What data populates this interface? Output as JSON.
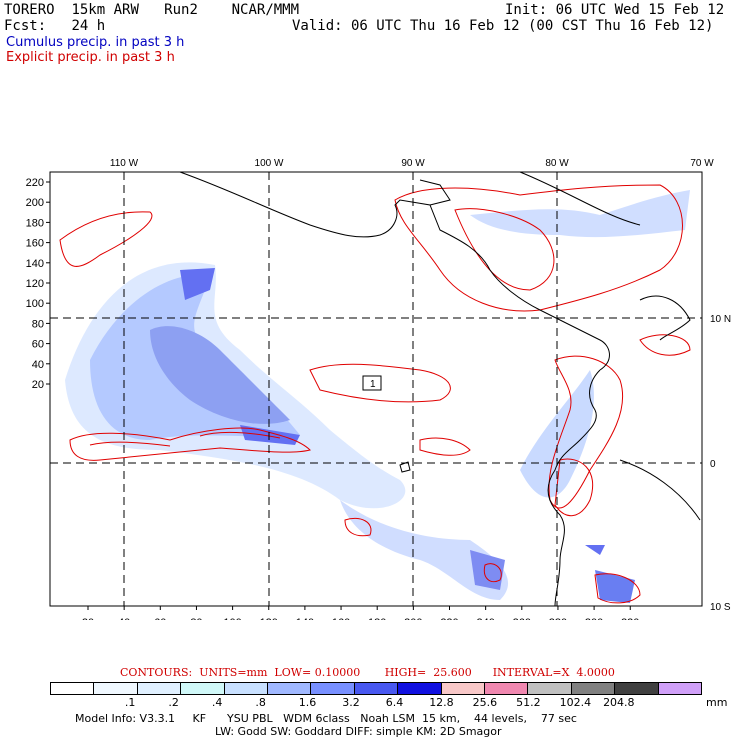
{
  "header": {
    "model": "TORERO",
    "resolution": "15km ARW",
    "run": "Run2",
    "org": "NCAR/MMM",
    "init": "Init: 06 UTC Wed 15 Feb 12",
    "fcst_label": "Fcst:",
    "fcst_hours": "24 h",
    "valid": "Valid: 06 UTC Thu 16 Feb 12 (00 CST Thu 16 Feb 12)",
    "cumulus_label": "Cumulus precip. in past 3 h",
    "explicit_label": "Explicit precip. in past 3 h"
  },
  "map": {
    "lon_labels": [
      "110 W",
      "100 W",
      "90 W",
      "80 W",
      "70 W"
    ],
    "lat_labels": [
      "10 N",
      "0",
      "10 S"
    ],
    "x_ticks": [
      "20",
      "40",
      "60",
      "80",
      "100",
      "120",
      "140",
      "160",
      "180",
      "200",
      "220",
      "240",
      "260",
      "280",
      "300",
      "320"
    ],
    "y_ticks": [
      "220",
      "200",
      "180",
      "160",
      "140",
      "120",
      "100",
      "80",
      "60",
      "40",
      "20"
    ],
    "center_label": "1"
  },
  "contours_line": "CONTOURS:  UNITS=mm  LOW= 0.10000       HIGH=  25.600      INTERVAL=X  4.0000",
  "colorbar": {
    "colors": [
      "#ffffff",
      "#f0f8ff",
      "#e0f0ff",
      "#d0f8f8",
      "#c8e0ff",
      "#a0b8ff",
      "#7890ff",
      "#4858f0",
      "#1010e0",
      "#f8c8c8",
      "#f088b0",
      "#c0c0c0",
      "#808080",
      "#404040",
      "#d0a0f8"
    ],
    "labels": [
      ".1",
      ".2",
      ".4",
      ".8",
      "1.6",
      "3.2",
      "6.4",
      "12.8",
      "25.6",
      "51.2",
      "102.4",
      "204.8"
    ],
    "units": "mm"
  },
  "model_info": {
    "line1": "Model Info: V3.3.1     KF      YSU PBL   WDM 6class   Noah LSM  15 km,    44 levels,    77 sec",
    "line2": "LW: Godd SW: Goddard DIFF: simple KM: 2D Smagor"
  }
}
